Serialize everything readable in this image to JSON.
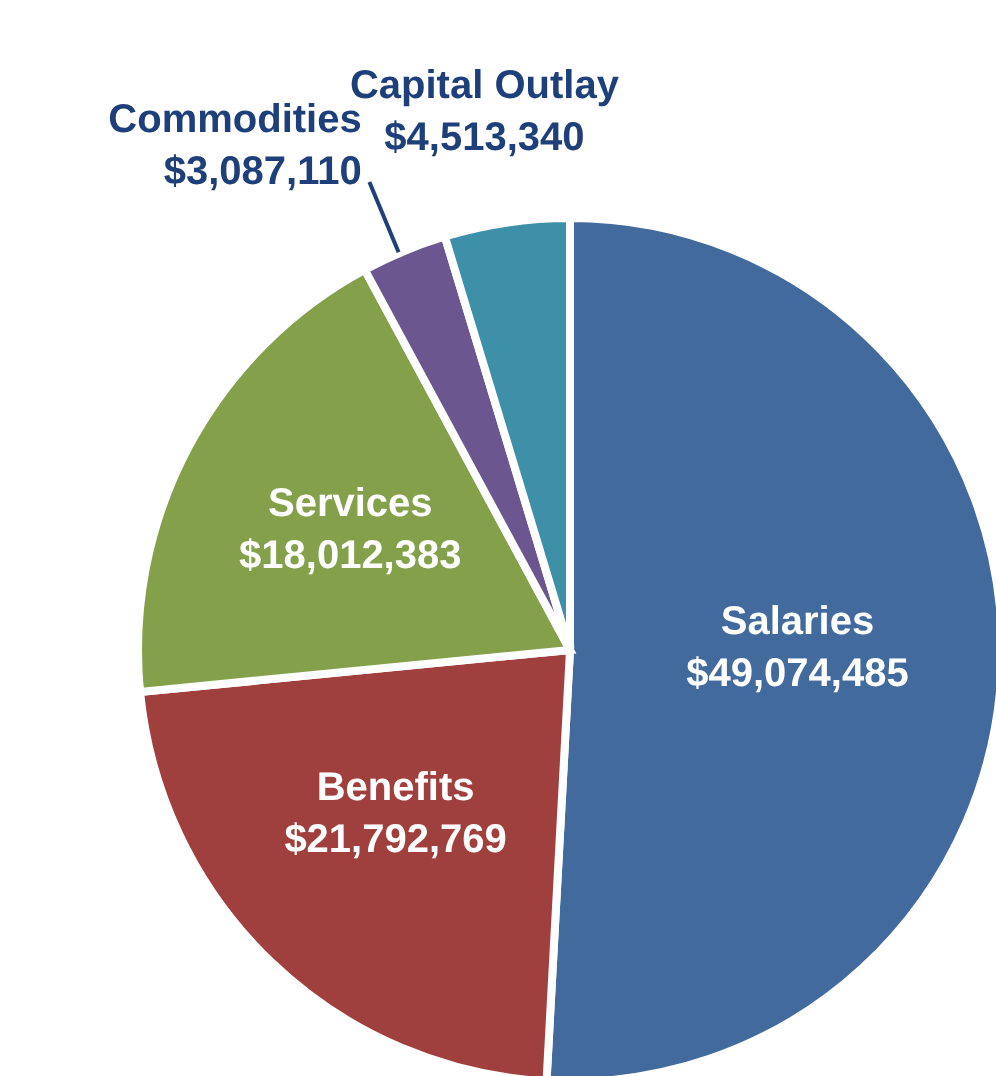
{
  "chart_data": {
    "type": "pie",
    "categories": [
      "Salaries",
      "Benefits",
      "Services",
      "Commodities",
      "Capital Outlay"
    ],
    "values": [
      49074485,
      21792769,
      18012383,
      3087110,
      4513340
    ],
    "value_labels": [
      "$49,074,485",
      "$21,792,769",
      "$18,012,383",
      "$3,087,110",
      "$4,513,340"
    ],
    "colors": [
      "#426a9c",
      "#a0403e",
      "#84a04a",
      "#6b5690",
      "#3e8fa8"
    ],
    "legend": false
  }
}
